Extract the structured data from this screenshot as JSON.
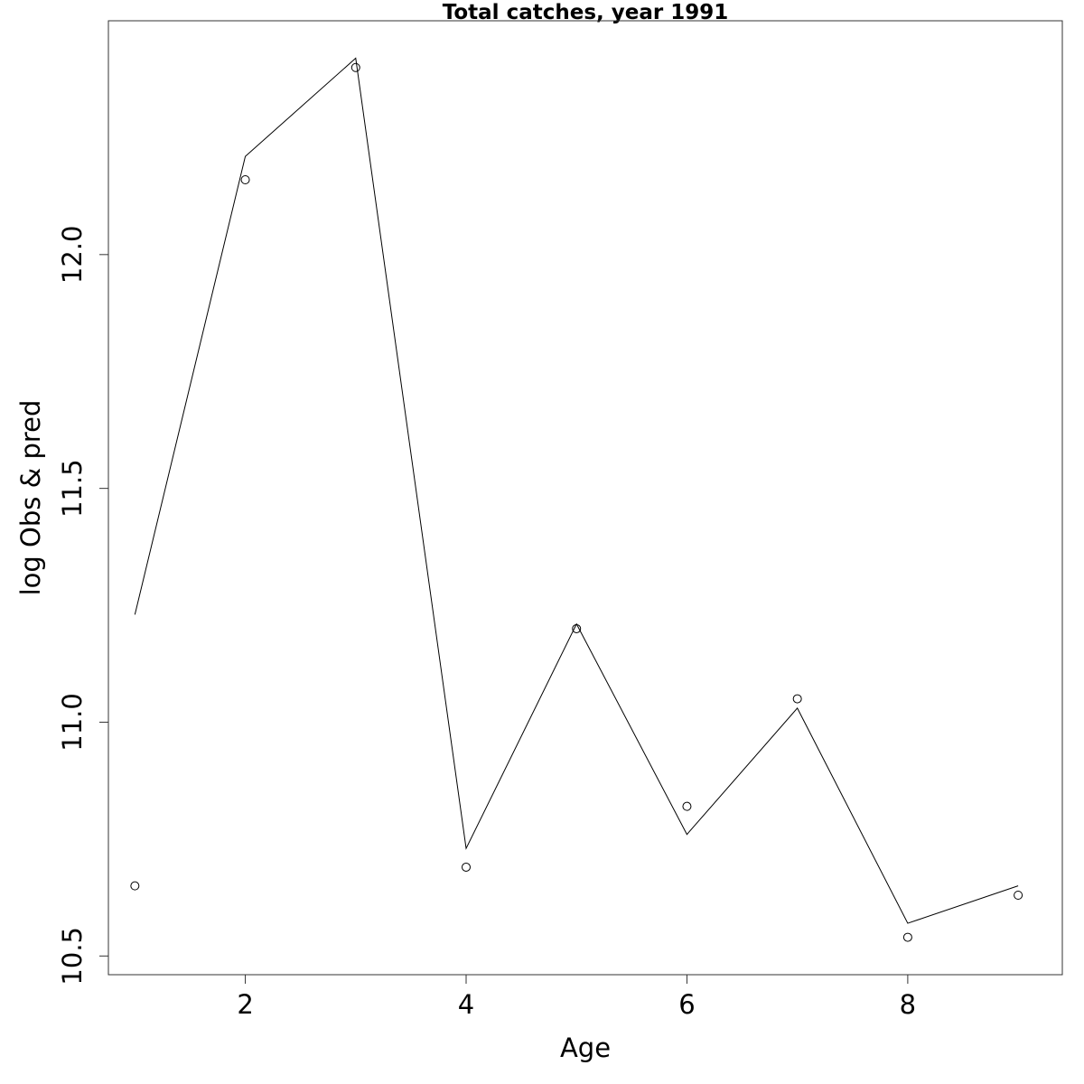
{
  "chart_data": {
    "type": "line",
    "title": "Total catches, year 1991",
    "xlabel": "Age",
    "ylabel": "log Obs & pred",
    "xlim": [
      0.76,
      9.4
    ],
    "ylim": [
      10.46,
      12.5
    ],
    "x_ticks": [
      2,
      4,
      6,
      8
    ],
    "x_tick_labels": [
      "2",
      "4",
      "6",
      "8"
    ],
    "y_ticks": [
      10.5,
      11.0,
      11.5,
      12.0
    ],
    "y_tick_labels": [
      "10.5",
      "11.0",
      "11.5",
      "12.0"
    ],
    "grid": false,
    "legend": "none",
    "x": [
      1,
      2,
      3,
      4,
      5,
      6,
      7,
      8,
      9
    ],
    "series": [
      {
        "style": "line",
        "values": [
          11.23,
          12.21,
          12.42,
          10.73,
          11.21,
          10.76,
          11.03,
          10.57,
          10.65
        ]
      },
      {
        "style": "points",
        "values": [
          10.65,
          12.16,
          12.4,
          10.69,
          11.2,
          10.82,
          11.05,
          10.54,
          10.63
        ]
      }
    ]
  }
}
